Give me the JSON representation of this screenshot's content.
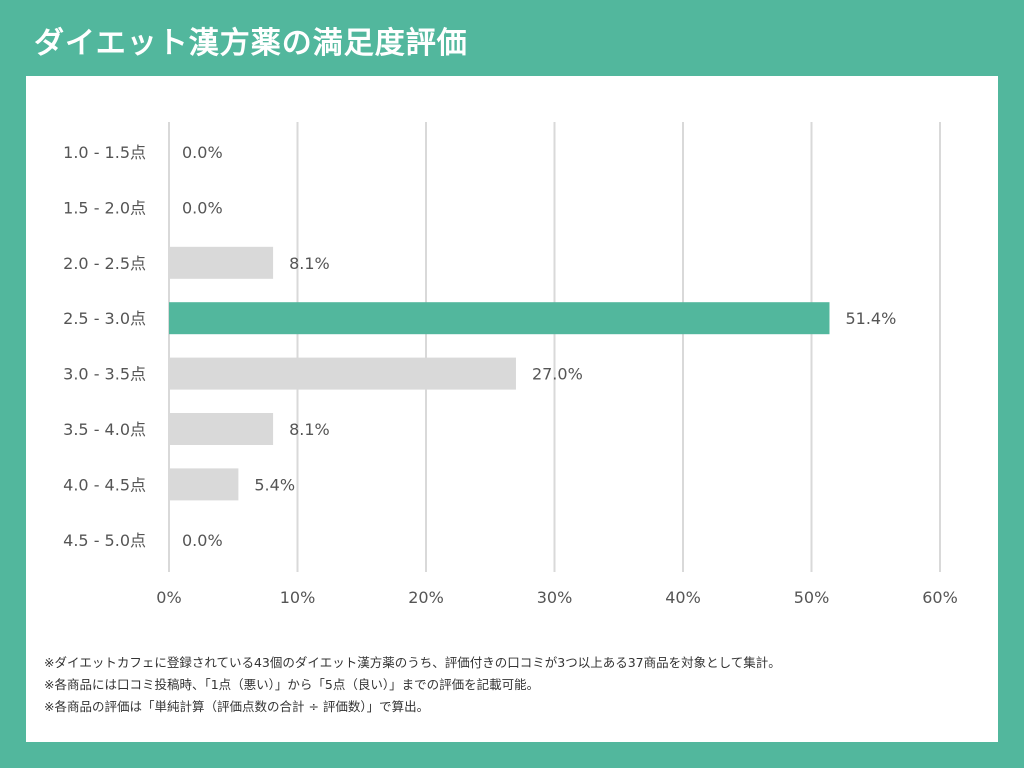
{
  "page_title": "ダイエット漢方薬の満足度評価",
  "colors": {
    "background": "#52b79d",
    "highlight_bar": "#52b79d",
    "default_bar": "#d9d9d9",
    "grid": "#d9d9d9",
    "text": "#555555"
  },
  "chart_data": {
    "type": "bar",
    "orientation": "horizontal",
    "title": "ダイエット漢方薬の満足度評価",
    "categories": [
      "1.0 - 1.5点",
      "1.5 - 2.0点",
      "2.0 - 2.5点",
      "2.5 - 3.0点",
      "3.0 - 3.5点",
      "3.5 - 4.0点",
      "4.0 - 4.5点",
      "4.5 - 5.0点"
    ],
    "values": [
      0.0,
      0.0,
      8.1,
      51.4,
      27.0,
      8.1,
      5.4,
      0.0
    ],
    "value_labels": [
      "0.0%",
      "0.0%",
      "8.1%",
      "51.4%",
      "27.0%",
      "8.1%",
      "5.4%",
      "0.0%"
    ],
    "highlight_index": 3,
    "xlim": [
      0,
      60
    ],
    "x_ticks": [
      0,
      10,
      20,
      30,
      40,
      50,
      60
    ],
    "x_tick_labels": [
      "0%",
      "10%",
      "20%",
      "30%",
      "40%",
      "50%",
      "60%"
    ],
    "xlabel": "",
    "ylabel": "",
    "grid": "vertical"
  },
  "notes": [
    "※ダイエットカフェに登録されている43個のダイエット漢方薬のうち、評価付きの口コミが3つ以上ある37商品を対象として集計。",
    "※各商品には口コミ投稿時、「1点（悪い）」から「5点（良い）」までの評価を記載可能。",
    "※各商品の評価は「単純計算（評価点数の合計 ÷ 評価数）」で算出。"
  ]
}
